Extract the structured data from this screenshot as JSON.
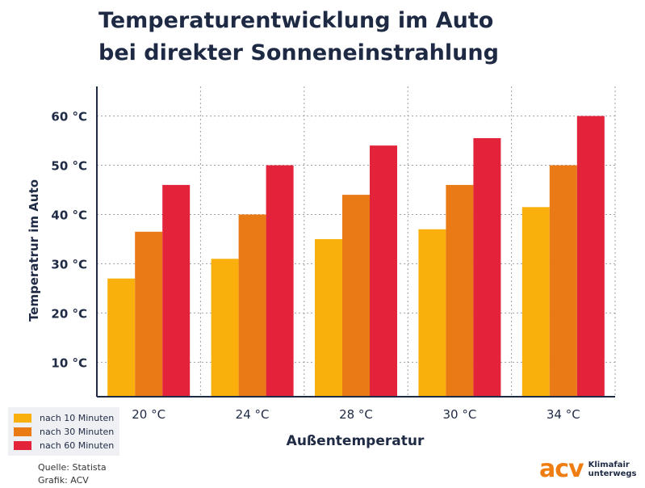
{
  "title_lines": [
    "Temperaturentwicklung im Auto",
    "bei direkter Sonneneinstrahlung"
  ],
  "chart_data": {
    "type": "bar",
    "title": "Temperaturentwicklung im Auto bei direkter Sonneneinstrahlung",
    "xlabel": "Außentemperatur",
    "ylabel": "Temperatrur im Auto",
    "categories": [
      "20 °C",
      "24 °C",
      "28 °C",
      "30 °C",
      "34 °C"
    ],
    "series": [
      {
        "name": "nach 10 Minuten",
        "color": "#f9b00d",
        "values": [
          27,
          31,
          35,
          37,
          41.5
        ]
      },
      {
        "name": "nach 30 Minuten",
        "color": "#ea7a16",
        "values": [
          36.5,
          40,
          44,
          46,
          50
        ]
      },
      {
        "name": "nach 60 Minuten",
        "color": "#e22339",
        "values": [
          46,
          50,
          54,
          55.5,
          60
        ]
      }
    ],
    "yticks": [
      "10 °C",
      "20 °C",
      "30 °C",
      "40 °C",
      "50 °C",
      "60 °C"
    ],
    "ytick_values": [
      10,
      20,
      30,
      40,
      50,
      60
    ],
    "ylim": [
      3,
      66
    ],
    "grid": true,
    "legend_position": "bottom-left"
  },
  "legend": {
    "items": [
      "nach 10 Minuten",
      "nach 30 Minuten",
      "nach 60 Minuten"
    ]
  },
  "source": {
    "line1": "Quelle: Statista",
    "line2": "Grafik: ACV"
  },
  "logo": {
    "mark": "acv",
    "line1": "Klimafair",
    "line2": "unterwegs"
  }
}
